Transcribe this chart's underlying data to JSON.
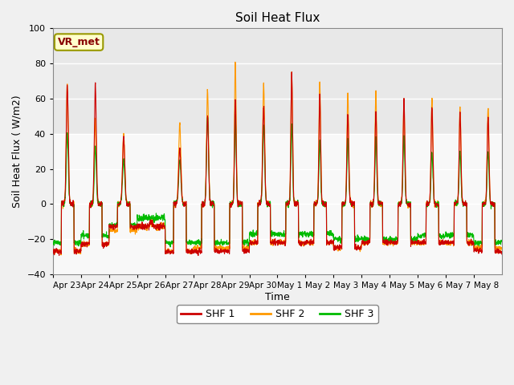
{
  "title": "Soil Heat Flux",
  "ylabel": "Soil Heat Flux ( W/m2)",
  "xlabel": "Time",
  "ylim": [
    -40,
    100
  ],
  "yticks": [
    -40,
    -20,
    0,
    20,
    40,
    60,
    80,
    100
  ],
  "fig_facecolor": "#f0f0f0",
  "plot_facecolor": "#ffffff",
  "shf1_color": "#cc0000",
  "shf2_color": "#ff9900",
  "shf3_color": "#00bb00",
  "legend_labels": [
    "SHF 1",
    "SHF 2",
    "SHF 3"
  ],
  "annotation": "VR_met",
  "x_tick_labels": [
    "Apr 23",
    "Apr 24",
    "Apr 25",
    "Apr 26",
    "Apr 27",
    "Apr 28",
    "Apr 29",
    "Apr 30",
    "May 1",
    "May 2",
    "May 3",
    "May 4",
    "May 5",
    "May 6",
    "May 7",
    "May 8"
  ],
  "num_days": 16,
  "pts_per_day": 144
}
